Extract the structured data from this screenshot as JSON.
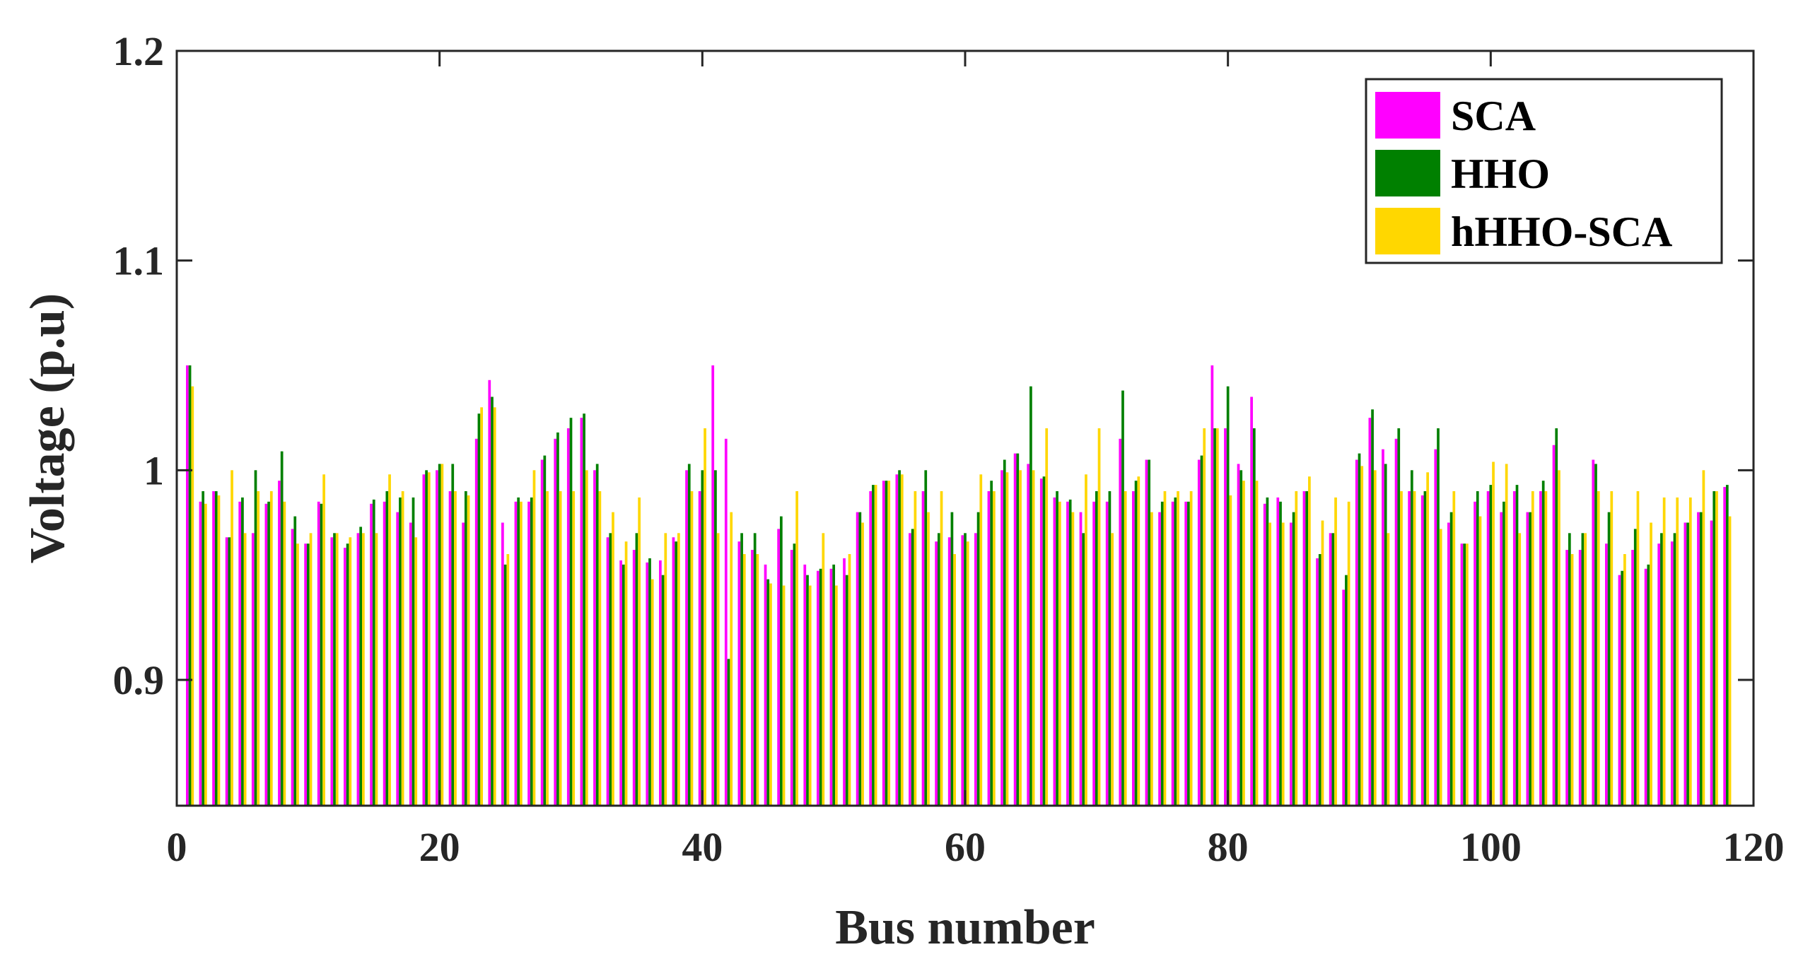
{
  "chart_data": {
    "type": "bar",
    "title": "",
    "xlabel": "Bus number",
    "ylabel": "Voltage (p.u)",
    "xlim": [
      0,
      120
    ],
    "ylim": [
      0.84,
      1.2
    ],
    "x_ticks": [
      "0",
      "20",
      "40",
      "60",
      "80",
      "100",
      "120"
    ],
    "y_ticks": [
      "0.9",
      "1",
      "1.1",
      "1.2"
    ],
    "grid": false,
    "legend_position": "top-right",
    "categories": [
      1,
      2,
      3,
      4,
      5,
      6,
      7,
      8,
      9,
      10,
      11,
      12,
      13,
      14,
      15,
      16,
      17,
      18,
      19,
      20,
      21,
      22,
      23,
      24,
      25,
      26,
      27,
      28,
      29,
      30,
      31,
      32,
      33,
      34,
      35,
      36,
      37,
      38,
      39,
      40,
      41,
      42,
      43,
      44,
      45,
      46,
      47,
      48,
      49,
      50,
      51,
      52,
      53,
      54,
      55,
      56,
      57,
      58,
      59,
      60,
      61,
      62,
      63,
      64,
      65,
      66,
      67,
      68,
      69,
      70,
      71,
      72,
      73,
      74,
      75,
      76,
      77,
      78,
      79,
      80,
      81,
      82,
      83,
      84,
      85,
      86,
      87,
      88,
      89,
      90,
      91,
      92,
      93,
      94,
      95,
      96,
      97,
      98,
      99,
      100,
      101,
      102,
      103,
      104,
      105,
      106,
      107,
      108,
      109,
      110,
      111,
      112,
      113,
      114,
      115,
      116,
      117,
      118
    ],
    "series": [
      {
        "name": "SCA",
        "color": "#ff00ff",
        "values": [
          1.05,
          0.985,
          0.99,
          0.968,
          0.985,
          0.97,
          0.984,
          0.995,
          0.972,
          0.965,
          0.985,
          0.968,
          0.963,
          0.97,
          0.984,
          0.985,
          0.98,
          0.975,
          0.998,
          1.0,
          0.99,
          0.975,
          1.015,
          1.043,
          0.975,
          0.985,
          0.985,
          1.005,
          1.015,
          1.02,
          1.025,
          1.0,
          0.968,
          0.957,
          0.962,
          0.956,
          0.957,
          0.968,
          1.0,
          0.99,
          1.05,
          1.015,
          0.966,
          0.962,
          0.955,
          0.972,
          0.962,
          0.955,
          0.952,
          0.953,
          0.958,
          0.98,
          0.99,
          0.995,
          0.998,
          0.97,
          0.99,
          0.966,
          0.968,
          0.969,
          0.97,
          0.99,
          1.0,
          1.008,
          1.003,
          0.996,
          0.987,
          0.985,
          0.98,
          0.985,
          0.985,
          1.015,
          0.99,
          1.005,
          0.98,
          0.985,
          0.985,
          1.005,
          1.05,
          1.02,
          1.003,
          1.035,
          0.984,
          0.987,
          0.975,
          0.99,
          0.958,
          0.97,
          0.943,
          1.005,
          1.025,
          1.01,
          1.015,
          0.99,
          0.988,
          1.01,
          0.975,
          0.965,
          0.985,
          0.99,
          0.98,
          0.99,
          0.98,
          0.99,
          1.012,
          0.962,
          0.962,
          1.005,
          0.965,
          0.95,
          0.962,
          0.953,
          0.965,
          0.966,
          0.975,
          0.98,
          0.976,
          0.992
        ]
      },
      {
        "name": "HHO",
        "color": "#008000",
        "values": [
          1.05,
          0.99,
          0.99,
          0.968,
          0.987,
          1.0,
          0.985,
          1.009,
          0.978,
          0.965,
          0.984,
          0.97,
          0.965,
          0.973,
          0.986,
          0.99,
          0.987,
          0.987,
          1.0,
          1.003,
          1.003,
          0.99,
          1.027,
          1.035,
          0.955,
          0.987,
          0.987,
          1.007,
          1.018,
          1.025,
          1.027,
          1.003,
          0.97,
          0.955,
          0.97,
          0.958,
          0.95,
          0.966,
          1.003,
          1.0,
          1.0,
          0.91,
          0.97,
          0.97,
          0.948,
          0.978,
          0.965,
          0.95,
          0.953,
          0.955,
          0.95,
          0.98,
          0.993,
          0.995,
          1.0,
          0.972,
          1.0,
          0.97,
          0.98,
          0.97,
          0.98,
          0.995,
          1.005,
          1.008,
          1.04,
          0.997,
          0.99,
          0.986,
          0.97,
          0.99,
          0.99,
          1.038,
          0.995,
          1.005,
          0.985,
          0.987,
          0.985,
          1.007,
          1.02,
          1.04,
          1.0,
          1.02,
          0.987,
          0.985,
          0.98,
          0.99,
          0.96,
          0.97,
          0.95,
          1.008,
          1.029,
          1.003,
          1.02,
          1.0,
          0.99,
          1.02,
          0.98,
          0.965,
          0.99,
          0.993,
          0.985,
          0.993,
          0.98,
          0.995,
          1.02,
          0.97,
          0.97,
          1.003,
          0.98,
          0.952,
          0.972,
          0.955,
          0.97,
          0.97,
          0.975,
          0.98,
          0.99,
          0.993
        ]
      },
      {
        "name": "hHHO-SCA",
        "color": "#ffd700",
        "values": [
          1.04,
          0.984,
          0.988,
          1.0,
          0.97,
          0.99,
          0.99,
          0.985,
          0.965,
          0.97,
          0.998,
          0.97,
          0.968,
          0.97,
          0.97,
          0.998,
          0.99,
          0.968,
          0.999,
          1.003,
          0.99,
          0.988,
          1.03,
          1.03,
          0.96,
          0.985,
          1.0,
          0.99,
          0.99,
          0.99,
          1.0,
          0.99,
          0.98,
          0.966,
          0.987,
          0.948,
          0.97,
          0.97,
          0.99,
          1.02,
          0.97,
          0.98,
          0.96,
          0.96,
          0.946,
          0.945,
          0.99,
          0.945,
          0.97,
          0.945,
          0.96,
          0.975,
          0.993,
          0.995,
          0.998,
          0.99,
          0.98,
          0.99,
          0.96,
          0.966,
          0.998,
          0.99,
          0.999,
          1.0,
          1.0,
          1.02,
          0.985,
          0.98,
          0.998,
          1.02,
          0.97,
          0.99,
          0.997,
          0.98,
          0.99,
          0.99,
          0.99,
          1.02,
          1.02,
          0.988,
          0.995,
          0.995,
          0.975,
          0.975,
          0.99,
          0.997,
          0.976,
          0.987,
          0.985,
          1.002,
          1.0,
          0.97,
          0.99,
          0.99,
          0.999,
          0.972,
          0.99,
          0.965,
          0.978,
          1.004,
          1.003,
          0.97,
          0.99,
          0.99,
          1.0,
          0.96,
          0.97,
          0.99,
          0.99,
          0.96,
          0.99,
          0.975,
          0.987,
          0.987,
          0.987,
          1.0,
          0.99,
          0.978
        ]
      }
    ]
  }
}
